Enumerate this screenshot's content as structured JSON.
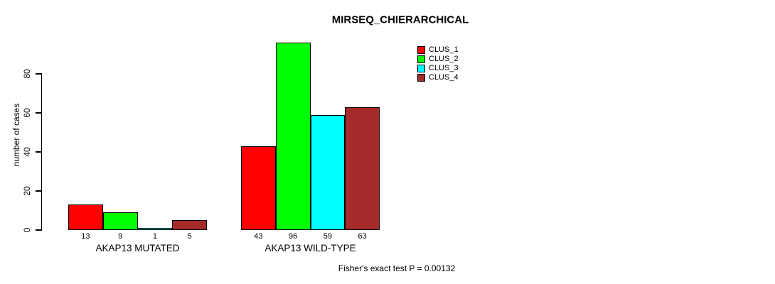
{
  "title": "MIRSEQ_CHIERARCHICAL",
  "footer": "Fisher's exact test P = 0.00132",
  "chart_data": {
    "type": "bar",
    "title": "MIRSEQ_CHIERARCHICAL",
    "ylabel": "number of cases",
    "xlabel": "",
    "categories": [
      "AKAP13 MUTATED",
      "AKAP13 WILD-TYPE"
    ],
    "series": [
      {
        "name": "CLUS_1",
        "color": "#FF0000",
        "values": [
          13,
          43
        ]
      },
      {
        "name": "CLUS_2",
        "color": "#00FF00",
        "values": [
          9,
          96
        ]
      },
      {
        "name": "CLUS_3",
        "color": "#00FFFF",
        "values": [
          1,
          59
        ]
      },
      {
        "name": "CLUS_4",
        "color": "#A52A2A",
        "values": [
          5,
          63
        ]
      }
    ],
    "bar_value_labels_shown": true,
    "yticks": [
      0,
      20,
      40,
      60,
      80
    ],
    "ylim": [
      0,
      96
    ],
    "grid": false,
    "legend_position": "top-right",
    "annotation": "Fisher's exact test P = 0.00132"
  }
}
